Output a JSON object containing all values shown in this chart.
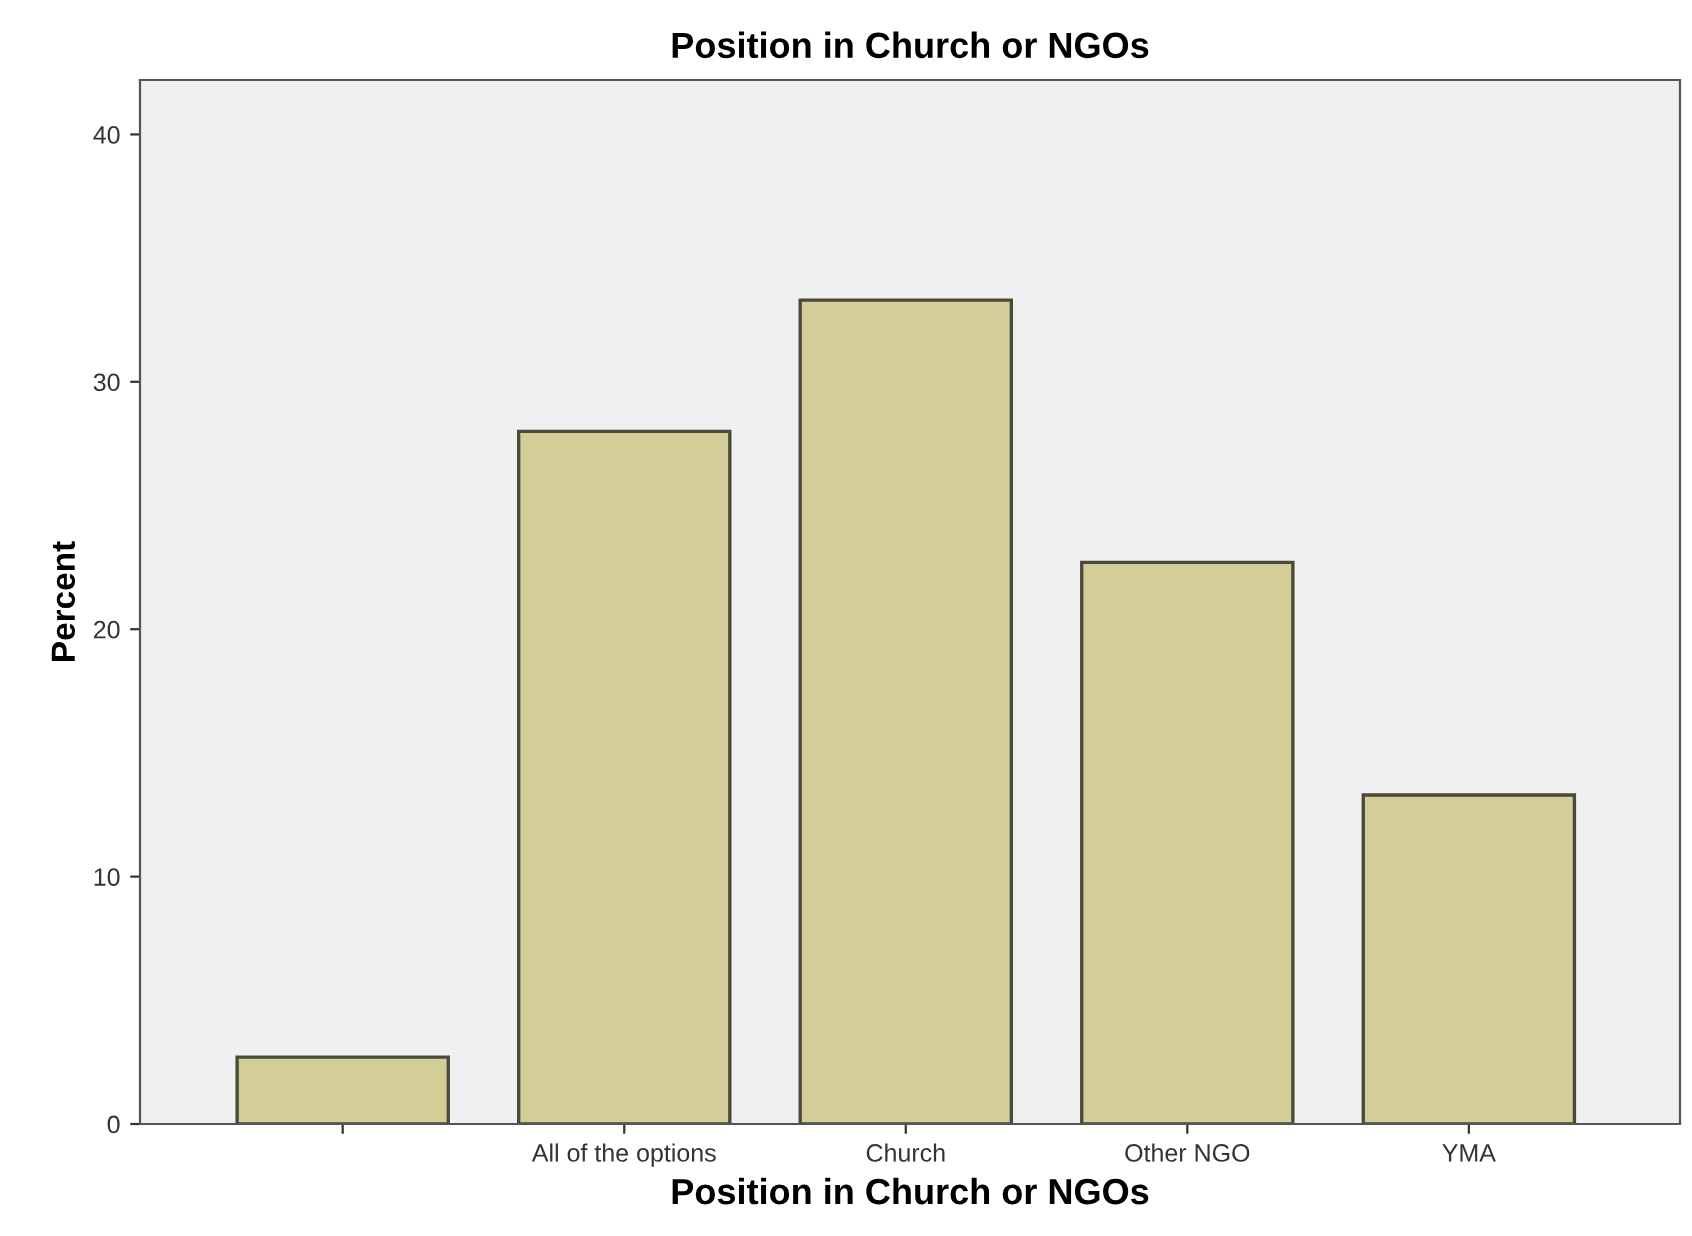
{
  "chart_data": {
    "type": "bar",
    "title": "Position in Church or NGOs",
    "xlabel": "Position in Church or NGOs",
    "ylabel": "Percent",
    "categories": [
      null,
      "All of the options",
      "Church",
      "Other NGO",
      "YMA"
    ],
    "values": [
      2.7,
      28.0,
      33.3,
      22.7,
      13.3
    ],
    "color": "#d3ce97",
    "ylim": [
      0,
      42.2
    ],
    "yticks": [
      0,
      10,
      20,
      30,
      40
    ],
    "grid": false,
    "legend": false
  }
}
